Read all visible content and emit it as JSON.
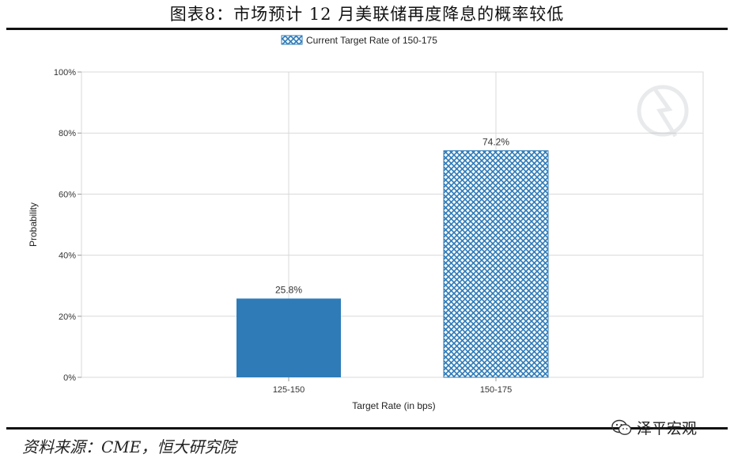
{
  "figure": {
    "title": "图表8：市场预计 12 月美联储再度降息的概率较低",
    "source": "资料来源：CME，恒大研究院",
    "watermark_text": "泽平宏观"
  },
  "colors": {
    "bar_solid": "#2e7bb8",
    "bar_hatch": "#2e7bb8",
    "grid": "#d9d9d9"
  },
  "chart_data": {
    "type": "bar",
    "categories": [
      "125-150",
      "150-175"
    ],
    "values": [
      25.8,
      74.2
    ],
    "data_labels": [
      "25.8%",
      "74.2%"
    ],
    "highlight_category": "150-175",
    "legend": [
      "Current Target Rate of 150-175"
    ],
    "legend_position": "top-center",
    "xlabel": "Target Rate (in bps)",
    "ylabel": "Probability",
    "ylim": [
      0,
      100
    ],
    "yticks": [
      "0%",
      "20%",
      "40%",
      "60%",
      "80%",
      "100%"
    ],
    "grid": true
  }
}
